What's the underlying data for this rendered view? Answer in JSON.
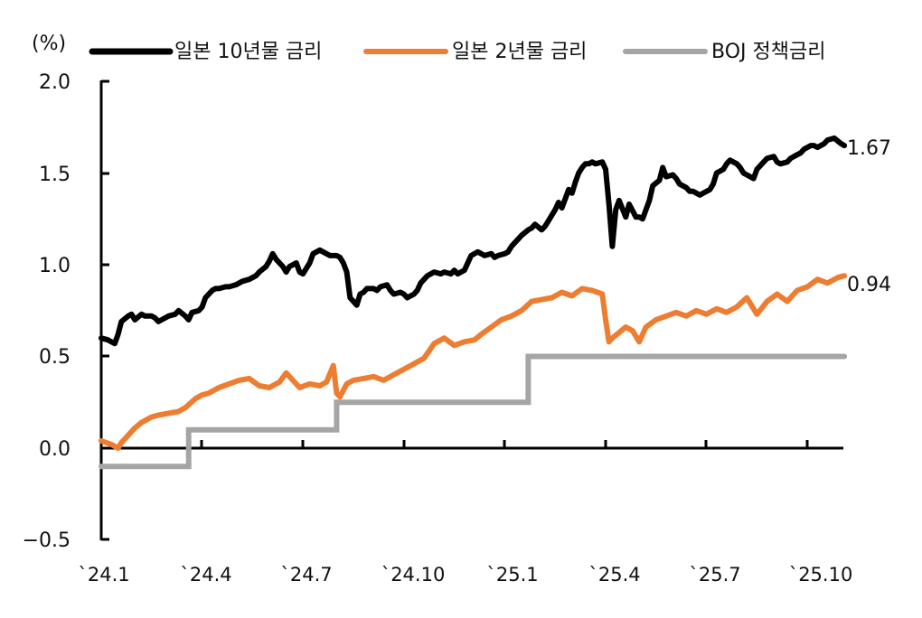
{
  "chart_data": {
    "type": "line",
    "title": "",
    "unit_label": "(%)",
    "xlabel": "",
    "ylabel": "(%)",
    "ylim": [
      -0.5,
      2.0
    ],
    "yticks": [
      "2.0",
      "1.5",
      "1.0",
      "0.5",
      "0.0",
      "-0.5"
    ],
    "ytick_values": [
      2.0,
      1.5,
      1.0,
      0.5,
      0.0,
      -0.5
    ],
    "xticks": [
      "`24.1",
      "`24.4",
      "`24.7",
      "`24.10",
      "`25.1",
      "`25.4",
      "`25.7",
      "`25.10"
    ],
    "grid": false,
    "legend_position": "top",
    "legend": [
      "일본 10년물 금리",
      "일본 2년물 금리",
      "BOJ 정책금리"
    ],
    "colors": {
      "jgb10y": "#000000",
      "jgb2y": "#ED7D31",
      "boj": "#A5A5A5"
    },
    "end_labels": {
      "jgb10y": "1.67",
      "jgb2y": "0.94"
    },
    "series": [
      {
        "name": "일본 10년물 금리",
        "key": "jgb10y",
        "color": "#000000",
        "x_months_since_2024_01": [
          0.0,
          0.2,
          0.4,
          0.5,
          0.6,
          0.8,
          0.9,
          1.0,
          1.2,
          1.3,
          1.5,
          1.6,
          1.7,
          1.9,
          2.0,
          2.2,
          2.3,
          2.5,
          2.6,
          2.7,
          2.9,
          3.0,
          3.1,
          3.3,
          3.4,
          3.5,
          3.7,
          3.8,
          4.0,
          4.1,
          4.2,
          4.4,
          4.6,
          4.7,
          4.9,
          5.0,
          5.1,
          5.2,
          5.4,
          5.5,
          5.6,
          5.8,
          5.9,
          6.0,
          6.2,
          6.3,
          6.5,
          6.6,
          6.8,
          6.9,
          7.0,
          7.1,
          7.2,
          7.3,
          7.4,
          7.6,
          7.7,
          7.8,
          7.9,
          8.1,
          8.2,
          8.3,
          8.5,
          8.6,
          8.7,
          8.9,
          9.0,
          9.1,
          9.3,
          9.4,
          9.5,
          9.7,
          9.8,
          9.9,
          10.1,
          10.2,
          10.4,
          10.5,
          10.6,
          10.8,
          10.9,
          11.0,
          11.2,
          11.3,
          11.4,
          11.6,
          11.7,
          11.8,
          12.0,
          12.1,
          12.2,
          12.4,
          12.5,
          12.7,
          12.8,
          12.9,
          13.1,
          13.2,
          13.3,
          13.4,
          13.5,
          13.6,
          13.7,
          13.8,
          13.9,
          14.0,
          14.1,
          14.2,
          14.3,
          14.4,
          14.5,
          14.6,
          14.7,
          14.9,
          15.0,
          15.1,
          15.2,
          15.3,
          15.4,
          15.6,
          15.7,
          15.9,
          16.0,
          16.1,
          16.3,
          16.4,
          16.6,
          16.7,
          16.8,
          17.0,
          17.1,
          17.2,
          17.4,
          17.5,
          17.6,
          17.8,
          17.9,
          18.1,
          18.2,
          18.3,
          18.5,
          18.6,
          18.7,
          18.9,
          19.0,
          19.1,
          19.3,
          19.4,
          19.5,
          19.7,
          19.8,
          20.0,
          20.1,
          20.2,
          20.4,
          20.5,
          20.6,
          20.8,
          20.9,
          21.1,
          21.2,
          21.3,
          21.5,
          21.6,
          21.8,
          22.0,
          22.1
        ],
        "values": [
          0.6,
          0.59,
          0.57,
          0.62,
          0.69,
          0.72,
          0.73,
          0.7,
          0.73,
          0.72,
          0.72,
          0.71,
          0.69,
          0.71,
          0.72,
          0.73,
          0.75,
          0.72,
          0.7,
          0.74,
          0.75,
          0.77,
          0.82,
          0.86,
          0.87,
          0.87,
          0.88,
          0.88,
          0.89,
          0.9,
          0.91,
          0.92,
          0.94,
          0.96,
          0.99,
          1.02,
          1.06,
          1.03,
          0.99,
          0.96,
          0.99,
          1.01,
          0.96,
          0.95,
          1.01,
          1.06,
          1.08,
          1.07,
          1.05,
          1.05,
          1.05,
          1.04,
          1.01,
          0.96,
          0.82,
          0.78,
          0.84,
          0.85,
          0.87,
          0.87,
          0.86,
          0.88,
          0.89,
          0.86,
          0.84,
          0.85,
          0.84,
          0.82,
          0.84,
          0.86,
          0.9,
          0.94,
          0.95,
          0.96,
          0.95,
          0.96,
          0.95,
          0.97,
          0.95,
          0.97,
          1.01,
          1.05,
          1.07,
          1.06,
          1.05,
          1.06,
          1.04,
          1.05,
          1.06,
          1.07,
          1.1,
          1.14,
          1.16,
          1.19,
          1.2,
          1.22,
          1.19,
          1.21,
          1.24,
          1.27,
          1.3,
          1.34,
          1.31,
          1.36,
          1.41,
          1.39,
          1.45,
          1.5,
          1.53,
          1.55,
          1.55,
          1.56,
          1.55,
          1.56,
          1.52,
          1.33,
          1.1,
          1.3,
          1.35,
          1.26,
          1.33,
          1.26,
          1.26,
          1.25,
          1.35,
          1.43,
          1.46,
          1.53,
          1.48,
          1.49,
          1.47,
          1.44,
          1.42,
          1.4,
          1.4,
          1.38,
          1.39,
          1.41,
          1.44,
          1.5,
          1.52,
          1.55,
          1.57,
          1.55,
          1.53,
          1.5,
          1.48,
          1.47,
          1.52,
          1.56,
          1.58,
          1.59,
          1.56,
          1.55,
          1.56,
          1.58,
          1.59,
          1.61,
          1.63,
          1.65,
          1.65,
          1.64,
          1.66,
          1.68,
          1.69,
          1.66,
          1.65,
          1.64,
          1.66,
          1.67
        ]
      },
      {
        "name": "일본 2년물 금리",
        "key": "jgb2y",
        "color": "#ED7D31",
        "x_months_since_2024_01": [
          0.0,
          0.3,
          0.5,
          0.6,
          0.8,
          1.0,
          1.2,
          1.5,
          1.7,
          2.0,
          2.3,
          2.5,
          2.8,
          3.0,
          3.2,
          3.5,
          3.8,
          4.1,
          4.4,
          4.7,
          5.0,
          5.3,
          5.5,
          5.7,
          5.9,
          6.2,
          6.5,
          6.7,
          6.9,
          7.0,
          7.1,
          7.3,
          7.5,
          7.8,
          8.1,
          8.4,
          8.7,
          9.0,
          9.3,
          9.6,
          9.9,
          10.2,
          10.5,
          10.8,
          11.1,
          11.3,
          11.6,
          11.9,
          12.2,
          12.5,
          12.8,
          13.1,
          13.4,
          13.7,
          14.0,
          14.3,
          14.6,
          14.9,
          15.0,
          15.1,
          15.2,
          15.4,
          15.6,
          15.8,
          16.0,
          16.2,
          16.5,
          16.8,
          17.1,
          17.4,
          17.7,
          18.0,
          18.3,
          18.6,
          18.9,
          19.2,
          19.5,
          19.8,
          20.1,
          20.4,
          20.7,
          21.0,
          21.3,
          21.6,
          21.9,
          22.1
        ],
        "values": [
          0.04,
          0.02,
          0.0,
          0.03,
          0.07,
          0.11,
          0.14,
          0.17,
          0.18,
          0.19,
          0.2,
          0.22,
          0.27,
          0.29,
          0.3,
          0.33,
          0.35,
          0.37,
          0.38,
          0.34,
          0.33,
          0.36,
          0.41,
          0.37,
          0.33,
          0.35,
          0.34,
          0.36,
          0.45,
          0.3,
          0.28,
          0.35,
          0.37,
          0.38,
          0.39,
          0.37,
          0.4,
          0.43,
          0.46,
          0.49,
          0.57,
          0.6,
          0.56,
          0.58,
          0.59,
          0.62,
          0.66,
          0.7,
          0.72,
          0.75,
          0.8,
          0.81,
          0.82,
          0.85,
          0.83,
          0.87,
          0.86,
          0.84,
          0.7,
          0.58,
          0.6,
          0.63,
          0.66,
          0.64,
          0.58,
          0.66,
          0.7,
          0.72,
          0.74,
          0.72,
          0.75,
          0.73,
          0.76,
          0.74,
          0.77,
          0.82,
          0.73,
          0.8,
          0.84,
          0.8,
          0.86,
          0.88,
          0.92,
          0.9,
          0.93,
          0.94
        ]
      },
      {
        "name": "BOJ 정책금리",
        "key": "boj",
        "color": "#A5A5A5",
        "x_months_since_2024_01": [
          0.0,
          2.6,
          2.6,
          7.0,
          7.0,
          12.7,
          12.7,
          22.1
        ],
        "values": [
          -0.1,
          -0.1,
          0.1,
          0.1,
          0.25,
          0.25,
          0.5,
          0.5
        ]
      }
    ]
  },
  "legend": {
    "unit": "(%)",
    "items": [
      {
        "label": "일본 10년물 금리",
        "color": "#000000"
      },
      {
        "label": "일본 2년물 금리",
        "color": "#ED7D31"
      },
      {
        "label": "BOJ 정책금리",
        "color": "#A5A5A5"
      }
    ]
  },
  "axes": {
    "y_ticks": [
      "2.0",
      "1.5",
      "1.0",
      "0.5",
      "0.0",
      "−0.5"
    ],
    "x_ticks": [
      "`24.1",
      "`24.4",
      "`24.7",
      "`24.10",
      "`25.1",
      "`25.4",
      "`25.7",
      "`25.10"
    ]
  },
  "end_labels": {
    "jgb10y": "1.67",
    "jgb2y": "0.94"
  }
}
